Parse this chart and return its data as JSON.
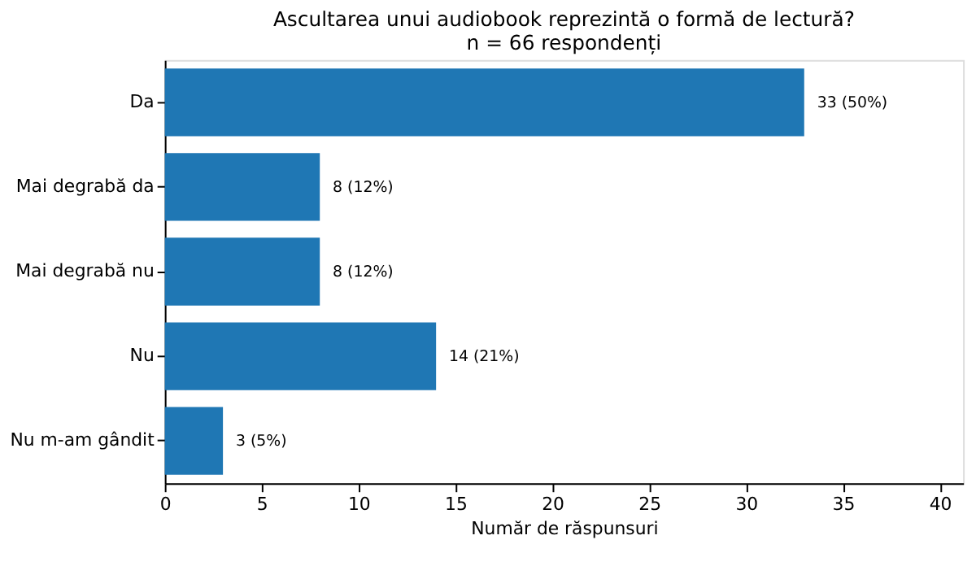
{
  "chart_data": {
    "type": "bar",
    "orientation": "horizontal",
    "title": "Ascultarea unui audiobook reprezintă o formă de lectură?",
    "subtitle": "n = 66 respondenți",
    "xlabel": "Număr de răspunsuri",
    "categories": [
      "Da",
      "Mai degrabă da",
      "Mai degrabă nu",
      "Nu",
      "Nu m-am gândit"
    ],
    "values": [
      33,
      8,
      8,
      14,
      3
    ],
    "color": "#1f77b4",
    "value_labels": [
      "33 (50%)",
      "8 (12%)",
      "8 (12%)",
      "14 (21%)",
      "3 (5%)"
    ],
    "xlim": [
      0,
      41.2
    ],
    "xticks": [
      0,
      5,
      10,
      15,
      20,
      25,
      30,
      35,
      40
    ],
    "grid": false
  }
}
